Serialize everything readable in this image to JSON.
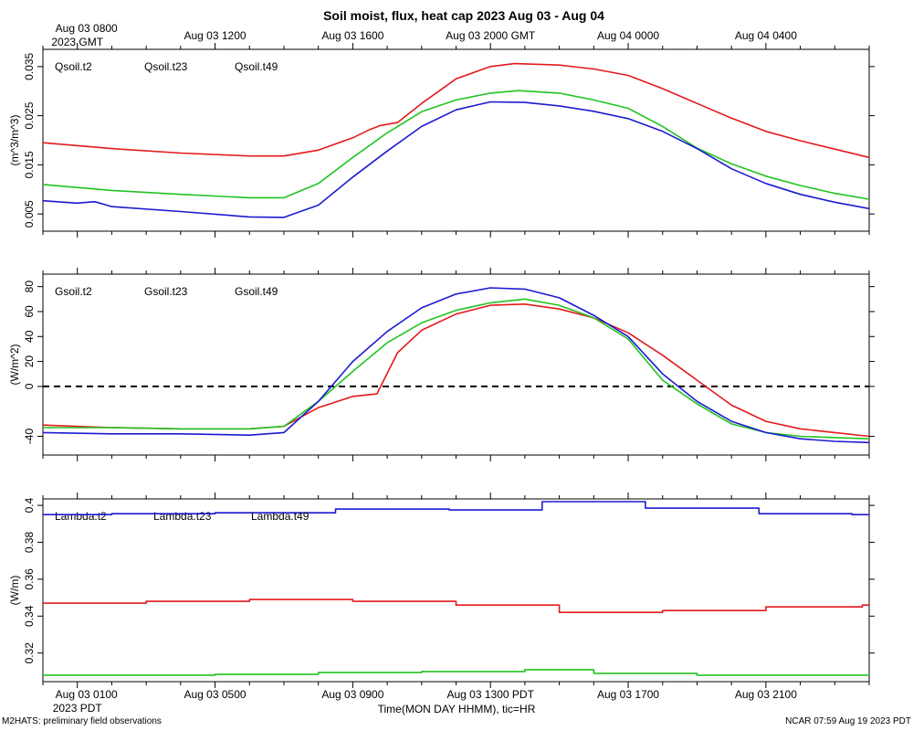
{
  "title": "Soil moist, flux, heat cap 2023 Aug 03 - Aug 04",
  "top_axis": {
    "ticks": [
      {
        "h": 0,
        "lines": [
          "Aug 03 0800",
          "2023 GMT"
        ]
      },
      {
        "h": 4,
        "lines": [
          "Aug 03 1200"
        ]
      },
      {
        "h": 8,
        "lines": [
          "Aug 03 1600"
        ]
      },
      {
        "h": 12,
        "lines": [
          "Aug 03 2000 GMT"
        ]
      },
      {
        "h": 16,
        "lines": [
          "Aug 04 0000"
        ]
      },
      {
        "h": 20,
        "lines": [
          "Aug 04 0400"
        ]
      }
    ]
  },
  "bottom_axis": {
    "ticks": [
      {
        "h": 0,
        "lines": [
          "Aug 03 0100",
          "2023 PDT"
        ]
      },
      {
        "h": 4,
        "lines": [
          "Aug 03 0500"
        ]
      },
      {
        "h": 8,
        "lines": [
          "Aug 03 0900"
        ]
      },
      {
        "h": 12,
        "lines": [
          "Aug 03 1300 PDT"
        ]
      },
      {
        "h": 16,
        "lines": [
          "Aug 03 1700"
        ]
      },
      {
        "h": 20,
        "lines": [
          "Aug 03 2100"
        ]
      }
    ],
    "xlabel": "Time(MON DAY HHMM), tic=HR"
  },
  "footer": {
    "left": "M2HATS: preliminary field observations",
    "right": "NCAR 07:59 Aug 19 2023 PDT"
  },
  "chart_data": [
    {
      "type": "line",
      "ylabel": "(m^3/m^3)",
      "xlim": [
        -1.0,
        23.0
      ],
      "ylim": [
        0.0015,
        0.0385
      ],
      "yticks": [
        0.005,
        0.015,
        0.025,
        0.035
      ],
      "series": [
        {
          "name": "Qsoil.t2",
          "color": "#e31a1c",
          "x": [
            -1,
            1,
            3,
            5,
            6,
            7,
            8,
            8.5,
            8.8,
            9.3,
            10,
            11,
            12,
            12.7,
            14,
            15,
            16,
            17,
            18,
            19,
            20,
            21,
            22,
            23
          ],
          "y": [
            0.0195,
            0.0183,
            0.0174,
            0.0168,
            0.0168,
            0.018,
            0.0205,
            0.0222,
            0.023,
            0.0236,
            0.0275,
            0.0325,
            0.035,
            0.0356,
            0.0353,
            0.0345,
            0.0332,
            0.0305,
            0.0275,
            0.0245,
            0.0218,
            0.0199,
            0.0182,
            0.0165
          ]
        },
        {
          "name": "Qsoil.t23",
          "color": "#22c322",
          "x": [
            -1,
            1,
            3,
            5,
            6,
            7,
            8,
            9,
            10,
            11,
            12,
            12.8,
            14,
            15,
            16,
            17,
            18,
            19,
            20,
            21,
            22,
            23
          ],
          "y": [
            0.011,
            0.0098,
            0.009,
            0.0083,
            0.0083,
            0.0112,
            0.0165,
            0.0215,
            0.0258,
            0.0282,
            0.0296,
            0.0301,
            0.0296,
            0.0282,
            0.0265,
            0.0228,
            0.0184,
            0.0152,
            0.0127,
            0.0108,
            0.0092,
            0.008
          ]
        },
        {
          "name": "Qsoil.t49",
          "color": "#1b1bd0",
          "x": [
            -1,
            0,
            0.5,
            1,
            3,
            5,
            6,
            7,
            8,
            9,
            10,
            11,
            12,
            13,
            14,
            15,
            16,
            17,
            18,
            19,
            20,
            21,
            22,
            23
          ],
          "y": [
            0.0077,
            0.0072,
            0.0075,
            0.0065,
            0.0055,
            0.0044,
            0.0043,
            0.0068,
            0.0125,
            0.0178,
            0.0228,
            0.0262,
            0.0278,
            0.0277,
            0.027,
            0.0259,
            0.0244,
            0.0218,
            0.0183,
            0.0142,
            0.0112,
            0.009,
            0.0074,
            0.0061
          ]
        }
      ]
    },
    {
      "type": "line",
      "ylabel": "(W/m^2)",
      "xlim": [
        -1.0,
        23.0
      ],
      "ylim": [
        -55.0,
        90.0
      ],
      "yticks": [
        -40,
        0,
        20,
        40,
        60,
        80
      ],
      "zero_line": true,
      "series": [
        {
          "name": "Gsoil.t2",
          "color": "#e31a1c",
          "x": [
            -1,
            1,
            3,
            5,
            6,
            7,
            8,
            8.7,
            9.3,
            10,
            11,
            12,
            13,
            14,
            15,
            16,
            17,
            18,
            19,
            20,
            21,
            22,
            23
          ],
          "y": [
            -31,
            -33,
            -34,
            -34,
            -32,
            -17,
            -8,
            -6,
            27,
            45,
            58,
            65,
            66,
            62,
            55,
            43,
            25,
            5,
            -15,
            -28,
            -34,
            -37,
            -40
          ]
        },
        {
          "name": "Gsoil.t23",
          "color": "#22c322",
          "x": [
            -1,
            1,
            3,
            5,
            6,
            7,
            8,
            9,
            10,
            11,
            12,
            13,
            14,
            15,
            16,
            17,
            18,
            19,
            20,
            21,
            22,
            23
          ],
          "y": [
            -33,
            -33,
            -34,
            -34,
            -32,
            -12,
            12,
            35,
            51,
            61,
            67,
            70,
            65,
            55,
            38,
            5,
            -14,
            -30,
            -37,
            -40,
            -41,
            -42
          ]
        },
        {
          "name": "Gsoil.t49",
          "color": "#1b1bd0",
          "x": [
            -1,
            1,
            3,
            5,
            6,
            7,
            8,
            9,
            10,
            11,
            12,
            13,
            14,
            15,
            16,
            17,
            18,
            19,
            20,
            21,
            22,
            23
          ],
          "y": [
            -37,
            -38,
            -38,
            -39,
            -37,
            -12,
            20,
            44,
            63,
            74,
            79,
            78,
            71,
            57,
            40,
            10,
            -12,
            -28,
            -37,
            -42,
            -44,
            -45
          ]
        }
      ]
    },
    {
      "type": "line",
      "ylabel": "(W/m)",
      "xlim": [
        -1.0,
        23.0
      ],
      "ylim": [
        0.3045,
        0.4035
      ],
      "yticks": [
        0.32,
        0.34,
        0.36,
        0.38,
        0.4
      ],
      "series": [
        {
          "name": "Lambda.t2",
          "color": "#e31a1c",
          "steps": true,
          "x": [
            -1,
            2,
            5,
            8,
            11,
            14,
            17,
            20,
            22.8,
            23
          ],
          "y": [
            0.347,
            0.348,
            0.349,
            0.348,
            0.346,
            0.342,
            0.343,
            0.345,
            0.346,
            0.346
          ]
        },
        {
          "name": "Lambda.t23",
          "color": "#22c322",
          "steps": true,
          "x": [
            -1,
            4,
            7,
            10,
            13,
            15,
            18,
            23
          ],
          "y": [
            0.308,
            0.3085,
            0.3095,
            0.31,
            0.311,
            0.309,
            0.308,
            0.308
          ]
        },
        {
          "name": "Lambda.t49",
          "color": "#1b1bd0",
          "steps": true,
          "x": [
            -1,
            1,
            4,
            7.5,
            10.8,
            13.5,
            16.5,
            19.8,
            22.5,
            23
          ],
          "y": [
            0.395,
            0.3955,
            0.396,
            0.398,
            0.3975,
            0.402,
            0.3985,
            0.3955,
            0.395,
            0.395
          ]
        }
      ]
    }
  ]
}
